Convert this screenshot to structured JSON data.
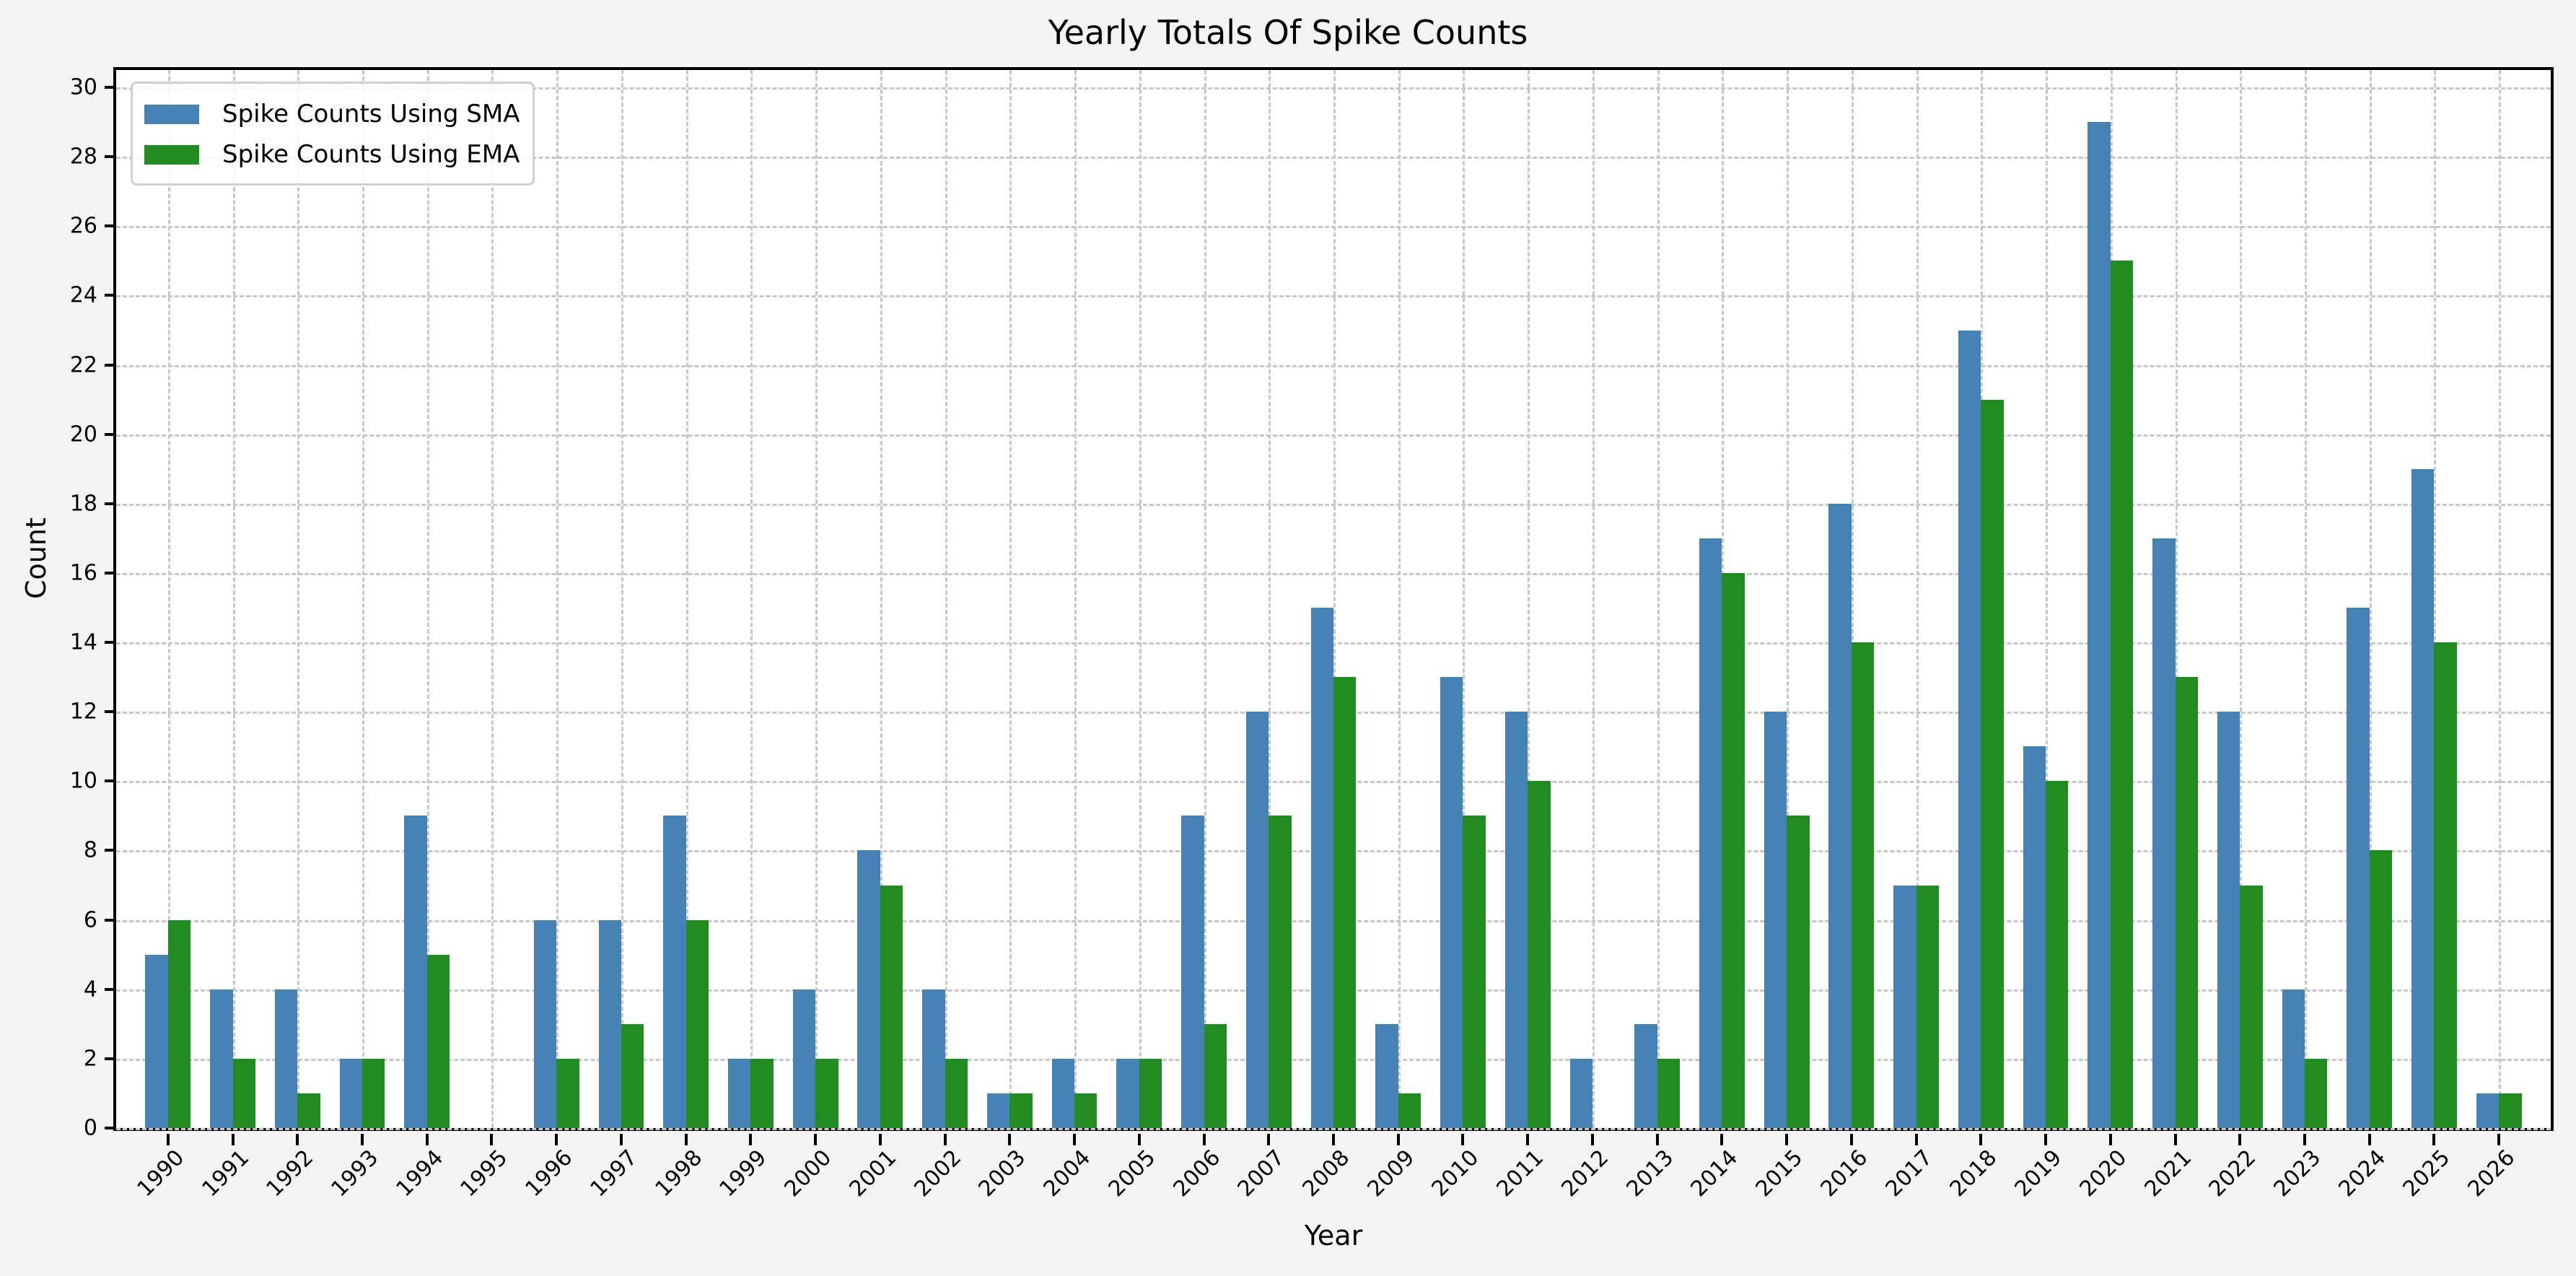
{
  "chart_data": {
    "type": "bar",
    "title": "Yearly Totals Of Spike Counts",
    "xlabel": "Year",
    "ylabel": "Count",
    "ylim": [
      0,
      30.5
    ],
    "yticks": [
      0,
      2,
      4,
      6,
      8,
      10,
      12,
      14,
      16,
      18,
      20,
      22,
      24,
      26,
      28,
      30
    ],
    "grid": true,
    "legend_position": "upper left",
    "categories": [
      "1990",
      "1991",
      "1992",
      "1993",
      "1994",
      "1995",
      "1996",
      "1997",
      "1998",
      "1999",
      "2000",
      "2001",
      "2002",
      "2003",
      "2004",
      "2005",
      "2006",
      "2007",
      "2008",
      "2009",
      "2010",
      "2011",
      "2012",
      "2013",
      "2014",
      "2015",
      "2016",
      "2017",
      "2018",
      "2019",
      "2020",
      "2021",
      "2022",
      "2023",
      "2024",
      "2025",
      "2026"
    ],
    "series": [
      {
        "name": "Spike Counts Using SMA",
        "color": "#4682b4",
        "values": [
          5,
          4,
          4,
          2,
          9,
          0,
          6,
          6,
          9,
          2,
          4,
          8,
          4,
          1,
          2,
          2,
          9,
          12,
          15,
          3,
          13,
          12,
          2,
          3,
          17,
          12,
          18,
          7,
          23,
          11,
          29,
          17,
          12,
          4,
          15,
          19,
          1
        ]
      },
      {
        "name": "Spike Counts Using EMA",
        "color": "#228b22",
        "values": [
          6,
          2,
          1,
          2,
          5,
          0,
          2,
          3,
          6,
          2,
          2,
          7,
          2,
          1,
          1,
          2,
          3,
          9,
          13,
          1,
          9,
          10,
          0,
          2,
          16,
          9,
          14,
          7,
          21,
          10,
          25,
          13,
          7,
          2,
          8,
          14,
          1
        ]
      }
    ]
  }
}
